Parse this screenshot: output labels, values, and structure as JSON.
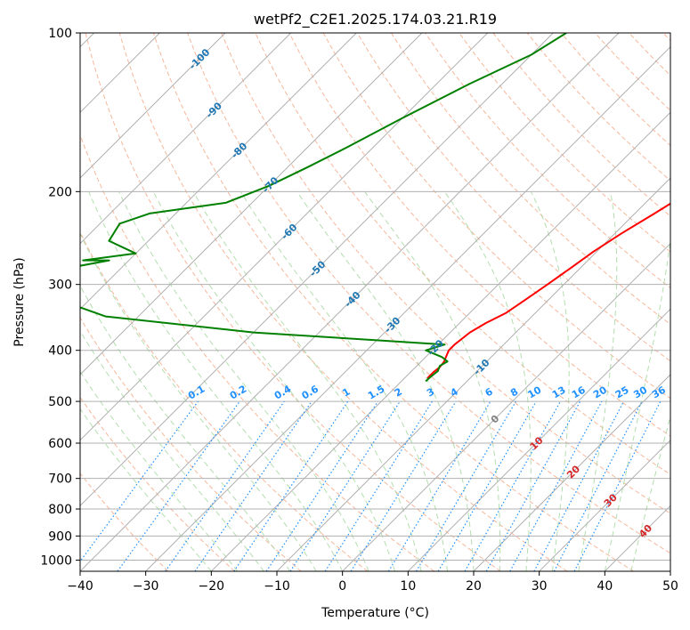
{
  "chart_data": {
    "type": "line",
    "title": "wetPf2_C2E1.2025.174.03.21.R19",
    "xlabel": "Temperature (°C)",
    "ylabel": "Pressure (hPa)",
    "xlim": [
      -40,
      50
    ],
    "ylim": [
      1050,
      100
    ],
    "y_scale": "log",
    "x_ticks": [
      -40,
      -30,
      -20,
      -10,
      0,
      10,
      20,
      30,
      40,
      50
    ],
    "y_ticks": [
      100,
      200,
      300,
      400,
      500,
      600,
      700,
      800,
      900,
      1000
    ],
    "grid": true,
    "skew_degrees": 45,
    "series": [
      {
        "color": "#ff0000",
        "x": [
          7.0,
          6.5,
          5.0,
          3.0,
          1.0,
          -1.0,
          -3.0,
          -5.0,
          -7.0,
          -9.0,
          -10.5,
          -11.5,
          -12.5,
          -13.5,
          -14.5,
          -16.0,
          -17.0,
          -17.5,
          -17.5,
          -17.0,
          -16.5,
          -16.3,
          -16.5,
          -16.5
        ],
        "y": [
          100,
          112,
          125,
          140,
          155,
          170,
          185,
          200,
          220,
          240,
          260,
          280,
          300,
          320,
          340,
          355,
          370,
          390,
          400,
          410,
          420,
          430,
          440,
          452
        ]
      },
      {
        "color": "#008000",
        "x": [
          -48.0,
          -50.0,
          -55.0,
          -60.0,
          -64.0,
          -67.0,
          -70.0,
          -74.0,
          -84.0,
          -87.0,
          -86.0,
          -80.0,
          -87.0,
          -83.0,
          -88.5,
          -85.0,
          -75.0,
          -50.0,
          -19.0,
          -21.0,
          -17.5,
          -16.0,
          -16.5,
          -16.0,
          -16.2,
          -16.3
        ],
        "y": [
          100,
          110,
          125,
          145,
          165,
          180,
          195,
          210,
          220,
          230,
          248,
          262,
          270,
          270,
          280,
          320,
          345,
          370,
          390,
          400,
          412,
          420,
          428,
          438,
          448,
          458
        ]
      }
    ],
    "isotherm_labels": [
      "-100",
      "-90",
      "-80",
      "-70",
      "-60",
      "-50",
      "-40",
      "-30",
      "-20",
      "-10",
      "0",
      "10",
      "20",
      "30",
      "40"
    ],
    "mixing_ratio_labels": [
      "0.1",
      "0.2",
      "0.4",
      "0.6",
      "1",
      "1.5",
      "2",
      "3",
      "4",
      "6",
      "8",
      "10",
      "13",
      "16",
      "20",
      "25",
      "30",
      "36"
    ],
    "colors": {
      "isotherm_label_cold": "#1f77b4",
      "isotherm_label_zero": "#808080",
      "isotherm_label_warm": "#d62728",
      "mixing_ratio": "#1e90ff",
      "dry_adiabat": "#f4a582",
      "moist_adiabat": "#a6d8a0",
      "grid": "#b0b0b0"
    }
  }
}
